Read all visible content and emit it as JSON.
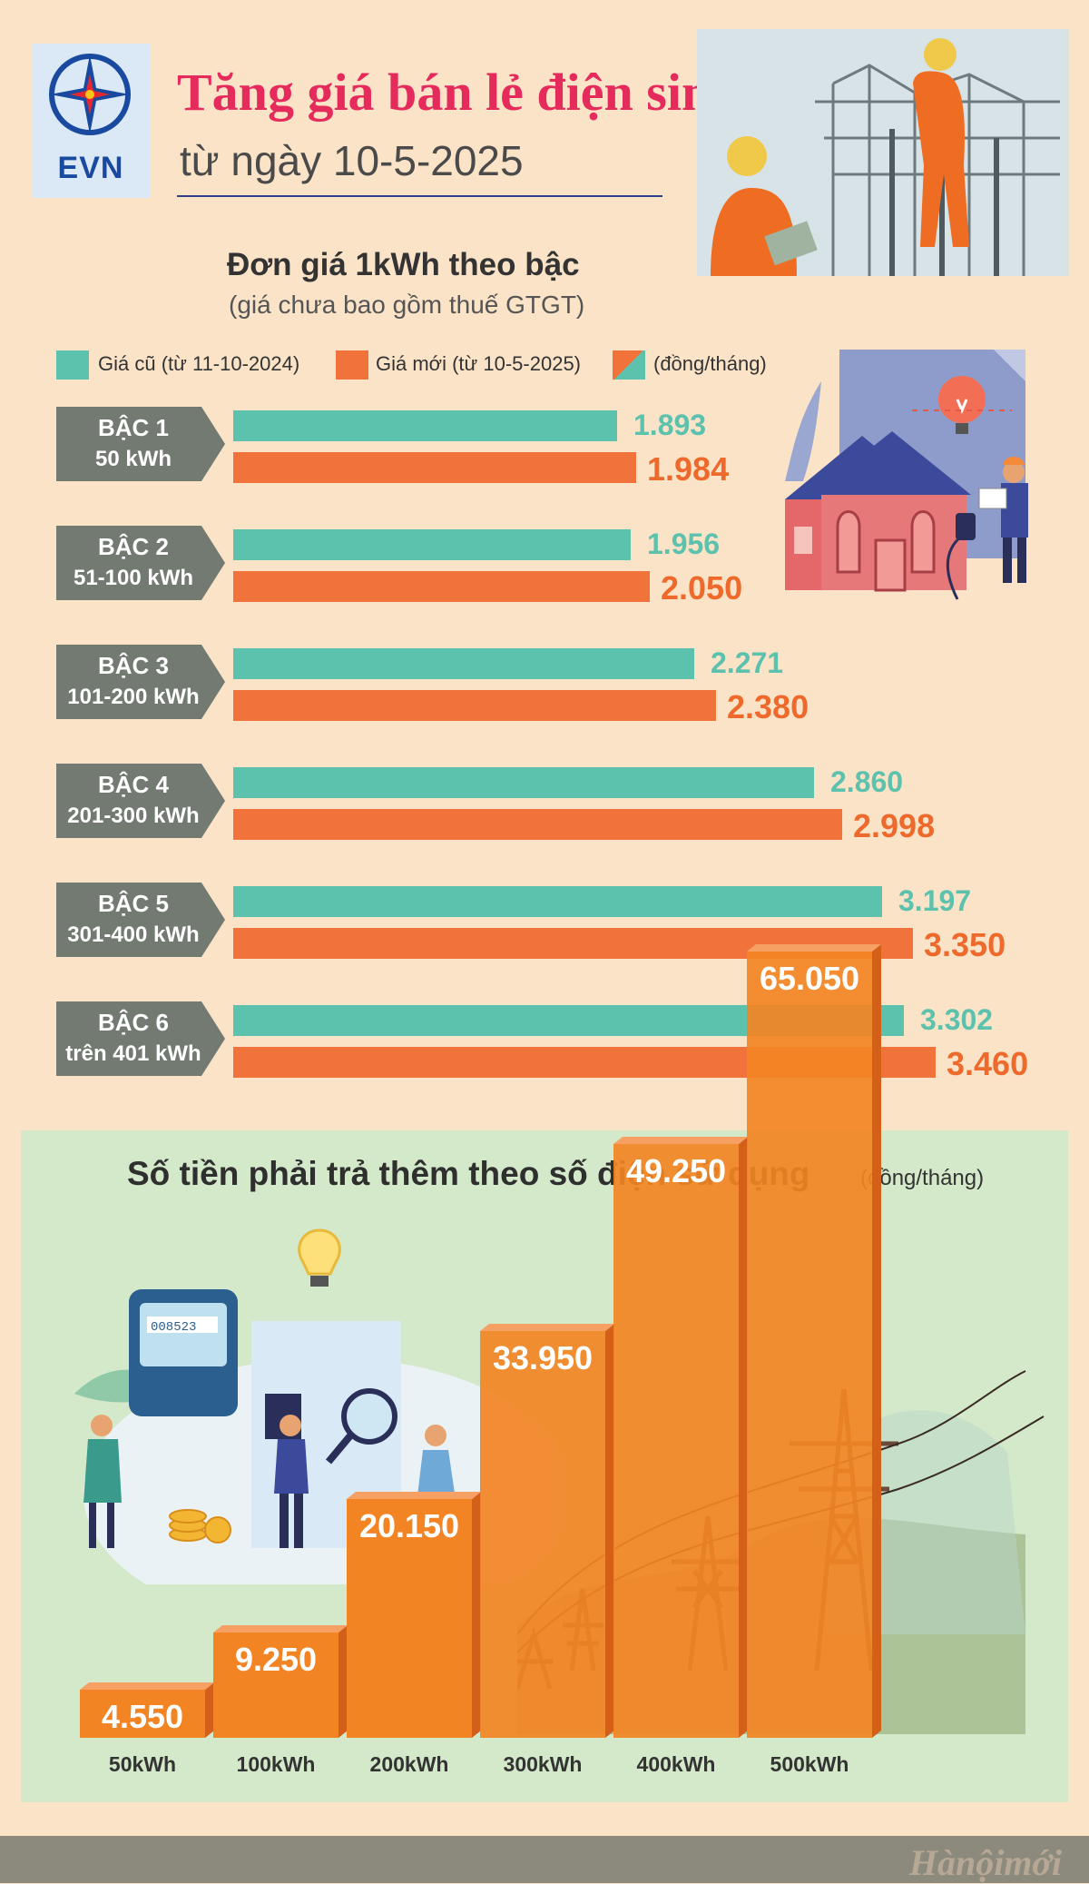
{
  "header": {
    "logo_text": "EVN",
    "title": "Tăng giá bán lẻ điện sinh hoạt",
    "subtitle": "từ ngày 10-5-2025"
  },
  "legend": {
    "old": "Giá cũ (từ 11-10-2024)",
    "new": "Giá mới (từ 10-5-2025)",
    "unit": "(đồng/tháng)"
  },
  "colors": {
    "old": "#5cc2ad",
    "new": "#f2723c",
    "tier_label_bg": "#727a72",
    "panel_bg": "#d3e9c9",
    "title": "#e52a5c"
  },
  "chart_data": [
    {
      "type": "bar",
      "title": "Đơn giá 1kWh theo bậc",
      "subtitle": "(giá chưa bao gồm thuế GTGT)",
      "orientation": "horizontal",
      "categories": [
        "BẬC 1",
        "BẬC 2",
        "BẬC 3",
        "BẬC 4",
        "BẬC 5",
        "BẬC 6"
      ],
      "category_ranges": [
        "50 kWh",
        "51-100 kWh",
        "101-200 kWh",
        "201-300 kWh",
        "301-400 kWh",
        "trên 401 kWh"
      ],
      "series": [
        {
          "name": "Giá cũ (từ 11-10-2024)",
          "values": [
            1893,
            1956,
            2271,
            2860,
            3197,
            3302
          ],
          "labels": [
            "1.893",
            "1.956",
            "2.271",
            "2.860",
            "3.197",
            "3.302"
          ]
        },
        {
          "name": "Giá mới (từ 10-5-2025)",
          "values": [
            1984,
            2050,
            2380,
            2998,
            3350,
            3460
          ],
          "labels": [
            "1.984",
            "2.050",
            "2.380",
            "2.998",
            "3.350",
            "3.460"
          ]
        }
      ],
      "legend": "top"
    },
    {
      "type": "bar",
      "title": "Số tiền phải trả thêm theo số điện sử dụng",
      "unit": "(đồng/tháng)",
      "categories": [
        "50kWh",
        "100kWh",
        "200kWh",
        "300kWh",
        "400kWh",
        "500kWh"
      ],
      "values": [
        4550,
        9250,
        20150,
        33950,
        49250,
        65050
      ],
      "labels": [
        "4.550",
        "9.250",
        "20.150",
        "33.950",
        "49.250",
        "65.050"
      ]
    }
  ],
  "footer": {
    "logo": "Hànộimới"
  }
}
